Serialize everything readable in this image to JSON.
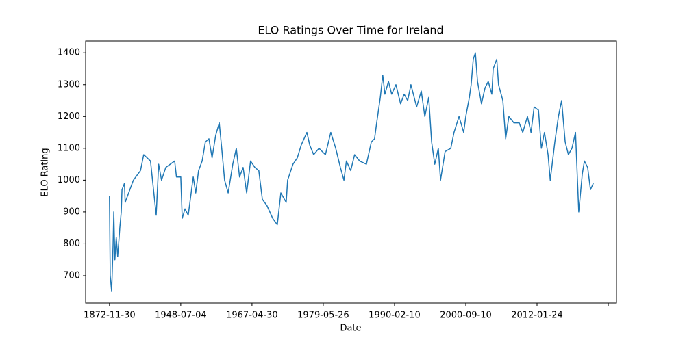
{
  "chart_data": {
    "type": "line",
    "title": "ELO Ratings Over Time for Ireland",
    "x_label": "Date",
    "y_label": "ELO Rating",
    "x": [
      0,
      2,
      6,
      10,
      12,
      15,
      19,
      23,
      29,
      33,
      35,
      42,
      44,
      67,
      87,
      96,
      115,
      131,
      138,
      146,
      158,
      183,
      188,
      200,
      204,
      212,
      221,
      235,
      242,
      250,
      260,
      269,
      279,
      288,
      298,
      308,
      315,
      323,
      333,
      346,
      356,
      365,
      375,
      385,
      396,
      408,
      419,
      429,
      442,
      458,
      471,
      481,
      496,
      500,
      515,
      527,
      538,
      554,
      562,
      573,
      588,
      606,
      621,
      635,
      648,
      658,
      665,
      677,
      688,
      702,
      721,
      735,
      744,
      750,
      760,
      767,
      773,
      783,
      792,
      804,
      817,
      827,
      837,
      846,
      862,
      875,
      885,
      896,
      904,
      913,
      923,
      929,
      942,
      958,
      967,
      981,
      994,
      1000,
      1010,
      1015,
      1021,
      1027,
      1033,
      1044,
      1054,
      1063,
      1073,
      1077,
      1087,
      1092,
      1104,
      1112,
      1121,
      1135,
      1150,
      1160,
      1173,
      1183,
      1192,
      1204,
      1212,
      1221,
      1231,
      1237,
      1250,
      1260,
      1269,
      1279,
      1288,
      1298,
      1308,
      1317,
      1327,
      1333,
      1342,
      1350,
      1358
    ],
    "series": [
      {
        "name": "Ireland",
        "color": "#1f77b4",
        "values": [
          950,
          700,
          650,
          800,
          900,
          750,
          820,
          760,
          850,
          900,
          970,
          990,
          930,
          1000,
          1030,
          1080,
          1060,
          890,
          1050,
          1000,
          1040,
          1060,
          1010,
          1010,
          880,
          910,
          890,
          1010,
          960,
          1030,
          1060,
          1120,
          1130,
          1070,
          1140,
          1180,
          1100,
          1000,
          960,
          1050,
          1100,
          1010,
          1040,
          960,
          1060,
          1040,
          1030,
          940,
          920,
          880,
          860,
          960,
          930,
          1000,
          1050,
          1070,
          1110,
          1150,
          1110,
          1080,
          1100,
          1080,
          1150,
          1100,
          1040,
          1000,
          1060,
          1030,
          1080,
          1060,
          1050,
          1120,
          1130,
          1180,
          1260,
          1330,
          1270,
          1310,
          1270,
          1300,
          1240,
          1270,
          1250,
          1300,
          1230,
          1280,
          1200,
          1260,
          1120,
          1050,
          1100,
          1000,
          1090,
          1100,
          1150,
          1200,
          1150,
          1200,
          1260,
          1300,
          1380,
          1400,
          1310,
          1240,
          1290,
          1310,
          1270,
          1350,
          1380,
          1300,
          1250,
          1130,
          1200,
          1180,
          1180,
          1150,
          1200,
          1150,
          1230,
          1220,
          1100,
          1150,
          1080,
          1000,
          1120,
          1200,
          1250,
          1120,
          1080,
          1100,
          1150,
          900,
          1020,
          1060,
          1040,
          970,
          990
        ]
      }
    ],
    "xlim": [
      -67,
      1423
    ],
    "xticks": [
      {
        "value": 0,
        "label": "1872-11-30"
      },
      {
        "value": 200,
        "label": "1948-07-04"
      },
      {
        "value": 400,
        "label": "1967-04-30"
      },
      {
        "value": 600,
        "label": "1979-05-26"
      },
      {
        "value": 800,
        "label": "1990-02-10"
      },
      {
        "value": 1000,
        "label": "2000-09-10"
      },
      {
        "value": 1200,
        "label": "2012-01-24"
      },
      {
        "value": 1400,
        "label": null
      }
    ],
    "ylim": [
      614,
      1437
    ],
    "yticks": [
      700,
      800,
      900,
      1000,
      1100,
      1200,
      1300,
      1400
    ],
    "grid": false
  }
}
